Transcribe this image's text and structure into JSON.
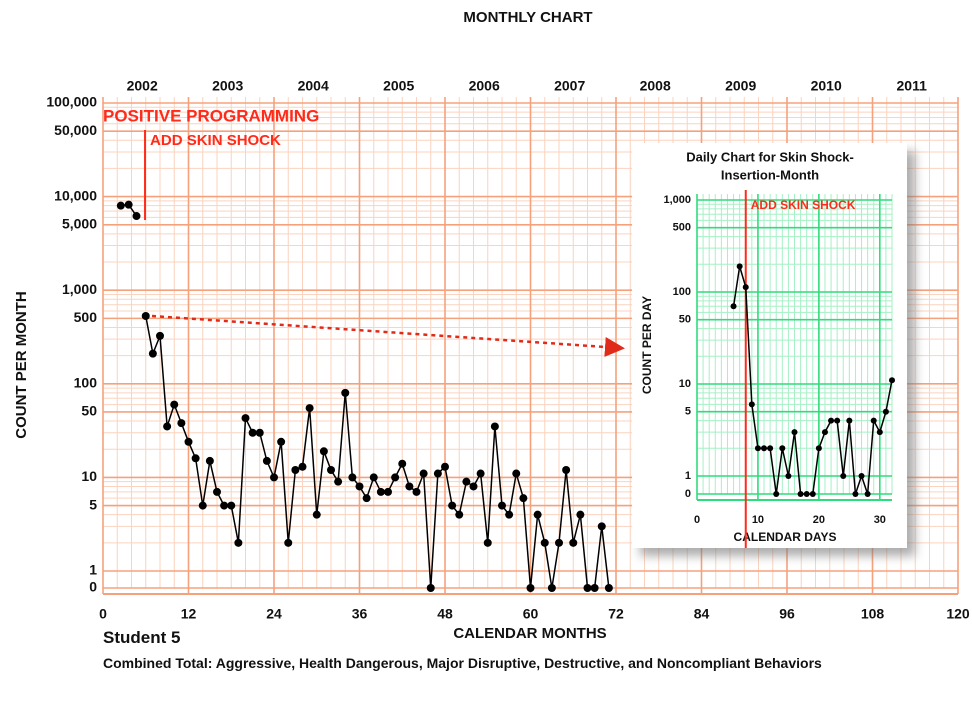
{
  "chart_data": [
    {
      "type": "line",
      "title": "MONTHLY CHART",
      "y_label": "COUNT PER MONTH",
      "x_label": "CALENDAR MONTHS",
      "log_scale": true,
      "grid": true,
      "grid_color": "#f5a27c",
      "minor_grid_color": "#fcd3bf",
      "xlim": [
        0,
        120
      ],
      "xticks": [
        0,
        12,
        24,
        36,
        48,
        60,
        72,
        84,
        96,
        108,
        120
      ],
      "ylim": [
        0,
        100000
      ],
      "yticks": [
        0,
        1,
        5,
        10,
        50,
        100,
        500,
        {
          "value": 1000,
          "label": "1,000"
        },
        {
          "value": 5000,
          "label": "5,000"
        },
        {
          "value": 10000,
          "label": "10,000"
        },
        {
          "value": 50000,
          "label": "50,000"
        },
        {
          "value": 100000,
          "label": "100,000"
        }
      ],
      "x2ticks": [
        {
          "value": 5.5,
          "label": "2002"
        },
        {
          "value": 17.5,
          "label": "2003"
        },
        {
          "value": 29.5,
          "label": "2004"
        },
        {
          "value": 41.5,
          "label": "2005"
        },
        {
          "value": 53.5,
          "label": "2006"
        },
        {
          "value": 65.5,
          "label": "2007"
        },
        {
          "value": 77.5,
          "label": "2008"
        },
        {
          "value": 89.5,
          "label": "2009"
        },
        {
          "value": 101.5,
          "label": "2010"
        },
        {
          "value": 113.5,
          "label": "2011"
        }
      ],
      "annotations": [
        {
          "text": "POSITIVE PROGRAMMING",
          "color": "#ff2a1a"
        },
        {
          "text": "ADD SKIN SHOCK",
          "x": 5.9,
          "color": "#ff2a1a"
        }
      ],
      "series": [
        {
          "color": "#000000",
          "x": [
            2.5,
            3.6,
            4.7
          ],
          "values": [
            8000,
            8200,
            6200
          ]
        },
        {
          "color": "#000000",
          "x": [
            6,
            7,
            8,
            9,
            10,
            11,
            12,
            13,
            14,
            15,
            16,
            17,
            18,
            19,
            20,
            21,
            22,
            23,
            24,
            25,
            26,
            27,
            28,
            29,
            30,
            31,
            32,
            33,
            34,
            35,
            36,
            37,
            38,
            39,
            40,
            41,
            42,
            43,
            44,
            45,
            46,
            47,
            48,
            49,
            50,
            51,
            52,
            53,
            54,
            55,
            56,
            57,
            58,
            59,
            60,
            61,
            62,
            63,
            64,
            65,
            66,
            67,
            68,
            69,
            70,
            71
          ],
          "values": [
            530,
            210,
            325,
            35,
            60,
            38,
            24,
            16,
            5,
            15,
            7,
            5,
            5,
            2,
            43,
            30,
            30,
            15,
            10,
            24,
            2,
            12,
            13,
            55,
            4,
            19,
            12,
            9,
            80,
            10,
            8,
            6,
            10,
            7,
            7,
            10,
            14,
            8,
            7,
            11,
            0,
            11,
            13,
            5,
            4,
            9,
            8,
            11,
            2,
            35,
            5,
            4,
            11,
            6,
            0,
            4,
            2,
            0,
            2,
            12,
            2,
            4,
            0,
            0,
            3,
            0
          ]
        }
      ],
      "student": "Student 5",
      "caption": "Combined Total: Aggressive, Health Dangerous, Major Disruptive, Destructive, and Noncompliant Behaviors"
    },
    {
      "type": "line",
      "title": [
        "Daily Chart for Skin Shock-",
        "Insertion-Month"
      ],
      "y_label": "COUNT PER DAY",
      "x_label": "CALENDAR DAYS",
      "log_scale": true,
      "grid": true,
      "grid_color": "#2fdc7c",
      "minor_grid_color": "#a6f0c6",
      "xlim": [
        0,
        32
      ],
      "xticks": [
        0,
        10,
        20,
        30
      ],
      "ylim": [
        0,
        1000
      ],
      "yticks": [
        0,
        1,
        5,
        10,
        50,
        100,
        500,
        {
          "value": 1000,
          "label": "1,000"
        }
      ],
      "annotations": [
        {
          "text": "ADD SKIN SHOCK",
          "x": 8,
          "color": "#ff2a1a"
        }
      ],
      "series": [
        {
          "color": "#000000",
          "x": [
            6,
            7,
            8,
            9,
            10,
            11,
            12,
            13,
            14,
            15,
            16,
            17,
            18,
            19,
            20,
            21,
            22,
            23,
            24,
            25,
            26,
            27,
            28,
            29,
            30,
            31,
            32
          ],
          "values": [
            70,
            190,
            113,
            6,
            2,
            2,
            2,
            0,
            2,
            1,
            3,
            0,
            0,
            0,
            2,
            3,
            4,
            4,
            1,
            4,
            0,
            1,
            0,
            4,
            3,
            5,
            11
          ]
        }
      ]
    }
  ]
}
